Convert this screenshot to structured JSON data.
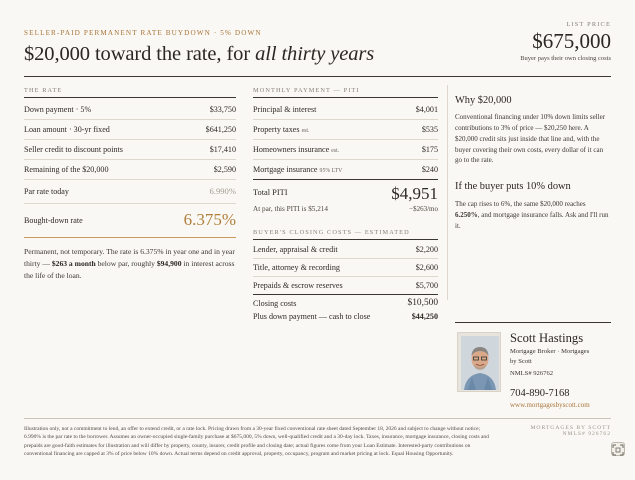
{
  "header": {
    "kicker": "SELLER-PAID PERMANENT RATE BUYDOWN · 5% DOWN",
    "headline_main": "$20,000 toward the rate, for ",
    "headline_italic": "all thirty years"
  },
  "list_price": {
    "label": "LIST PRICE",
    "value": "$675,000",
    "sub": "Buyer pays their own closing costs"
  },
  "rate": {
    "heading": "The Rate",
    "rows": [
      {
        "label": "Down payment · 5%",
        "value": "$33,750"
      },
      {
        "label": "Loan amount · 30-yr fixed",
        "value": "$641,250"
      },
      {
        "label": "Seller credit to discount points",
        "value": "$17,410"
      },
      {
        "label": "Remaining of the $20,000",
        "value": "$2,590"
      }
    ],
    "par_label": "Par rate today",
    "par_value": "6.990%",
    "bought_label": "Bought-down rate",
    "bought_value": "6.375%",
    "para_1": "Permanent, not temporary. The rate is 6.375% in year one and in year thirty — ",
    "para_bold_1": "$263 a month",
    "para_2": " below par, roughly ",
    "para_bold_2": "$94,900",
    "para_3": " in interest across the life of the loan."
  },
  "piti": {
    "heading": "Monthly Payment — PITI",
    "rows": [
      {
        "label": "Principal & interest",
        "note": "",
        "value": "$4,001"
      },
      {
        "label": "Property taxes",
        "note": "est.",
        "value": "$535"
      },
      {
        "label": "Homeowners insurance",
        "note": "est.",
        "value": "$175"
      },
      {
        "label": "Mortgage insurance",
        "note": "95% LTV",
        "value": "$240"
      }
    ],
    "total_label": "Total PITI",
    "total_value": "$4,951",
    "at_par_label": "At par, this PITI is $5,214",
    "at_par_diff": "−$263/mo"
  },
  "closing": {
    "heading": "Buyer's Closing Costs — Estimated",
    "rows": [
      {
        "label": "Lender, appraisal & credit",
        "value": "$2,200"
      },
      {
        "label": "Title, attorney & recording",
        "value": "$2,600"
      },
      {
        "label": "Prepaids & escrow reserves",
        "value": "$5,700"
      }
    ],
    "total_label": "Closing costs",
    "total_value": "$10,500",
    "plus_label": "Plus down payment — cash to close",
    "plus_value": "$44,250"
  },
  "side": {
    "why_title": "Why $20,000",
    "why_body": "Conventional financing under 10% down limits seller contributions to 3% of price — $20,250 here. A $20,000 credit sits just inside that line and, with the buyer covering their own costs, every dollar of it can go to the rate.",
    "ten_title": "If the buyer puts 10% down",
    "ten_body_1": "The cap rises to 6%, the same $20,000 reaches ",
    "ten_body_bold": "6.250%",
    "ten_body_2": ", and mortgage insurance falls. Ask and I'll run it."
  },
  "agent": {
    "name": "Scott Hastings",
    "title_line1": "Mortgage Broker · Mortgages",
    "title_line2": "by Scott",
    "nmls": "NMLS# 926762",
    "phone": "704-890-7168",
    "website": "www.mortgagesbyscott.com"
  },
  "footer": {
    "disclaimer": "Illustration only, not a commitment to lend, an offer to extend credit, or a rate lock. Pricing drawn from a 30-year fixed conventional rate sheet dated September 18, 2026 and subject to change without notice; 6.990% is the par rate to the borrower. Assumes an owner-occupied single-family purchase at $675,000, 5% down, well-qualified credit and a 30-day lock. Taxes, insurance, mortgage insurance, closing costs and prepaids are good-faith estimates for illustration and will differ by property, county, insurer, credit profile and closing date; actual figures come from your Loan Estimate. Interested-party contributions on conventional financing are capped at 3% of price below 10% down. Actual terms depend on credit approval, property, occupancy, program and market pricing at lock. Equal Housing Opportunity.",
    "brand_line1": "MORTGAGES BY SCOTT",
    "brand_line2": "NMLS# 926762"
  }
}
